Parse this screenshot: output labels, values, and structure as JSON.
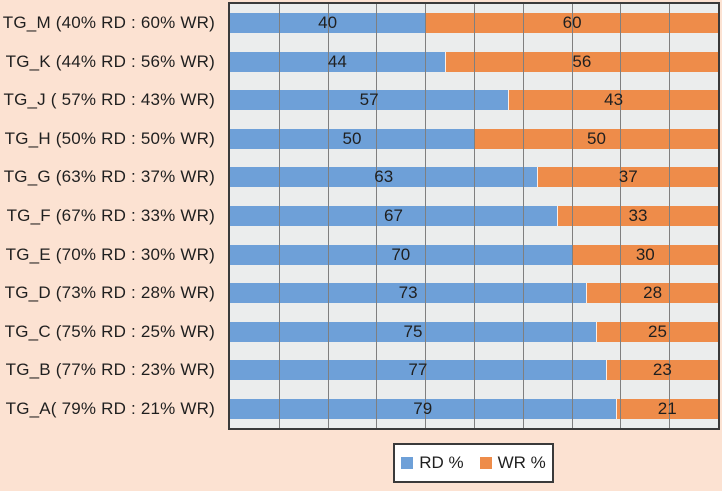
{
  "page": {
    "background_color": "#FCE2D2",
    "plot_background_color": "#EBEDED",
    "gridline_color": "#7F7F7F",
    "border_color": "#3A3A3A",
    "text_color": "#1F1F1F"
  },
  "chart_data": {
    "type": "bar",
    "orientation": "horizontal",
    "stacked": true,
    "title": "",
    "xlabel": "",
    "ylabel": "",
    "xlim": [
      0,
      100
    ],
    "gridline_interval": 10,
    "grid": "vertical-only",
    "gridlines_over_bars": true,
    "legend_position": "bottom-center",
    "value_labels": "centered-in-segment",
    "categories": [
      "TG_M (40% RD : 60% WR)",
      "TG_K (44% RD : 56% WR)",
      "TG_J ( 57% RD : 43% WR)",
      "TG_H (50% RD : 50% WR)",
      "TG_G (63% RD : 37% WR)",
      "TG_F (67% RD : 33% WR)",
      "TG_E (70% RD : 30% WR)",
      "TG_D (73% RD : 28% WR)",
      "TG_C (75% RD : 25% WR)",
      "TG_B (77% RD : 23% WR)",
      "TG_A( 79% RD : 21% WR)"
    ],
    "series": [
      {
        "name": "RD %",
        "color": "#6EA0D8",
        "values": [
          40,
          44,
          57,
          50,
          63,
          67,
          70,
          73,
          75,
          77,
          79
        ]
      },
      {
        "name": "WR %",
        "color": "#EE8C4A",
        "values": [
          60,
          56,
          43,
          50,
          37,
          33,
          30,
          28,
          25,
          23,
          21
        ]
      }
    ]
  },
  "legend": {
    "items": [
      {
        "label": "RD %",
        "color": "#6EA0D8"
      },
      {
        "label": "WR %",
        "color": "#EE8C4A"
      }
    ]
  }
}
